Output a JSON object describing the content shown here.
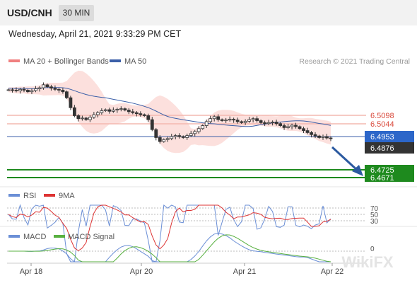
{
  "header": {
    "symbol": "USD/CNH",
    "timeframe": "30 MIN"
  },
  "datetime": "Wednesday, April 21, 2021 9:33:29 PM CET",
  "legend": {
    "ma20_bb": "MA 20 + Bollinger Bands",
    "ma50": "MA 50",
    "copyright": "Research © 2021 Trading Central",
    "rsi": "RSI",
    "rsi_ma": "9MA",
    "macd": "MACD",
    "macd_signal": "MACD Signal"
  },
  "colors": {
    "ma20_bb": "#f08080",
    "ma50": "#3b5fa8",
    "resistance": "#f4b8b0",
    "support": "#1e8a1e",
    "arrow": "#2c5aa0",
    "rsi": "#6b8fd6",
    "rsi_ma": "#d33",
    "macd": "#6b8fd6",
    "macd_signal": "#58b040"
  },
  "watermark": "WikiFX",
  "chart_data": {
    "type": "candlestick",
    "price_axis": {
      "ylim": [
        6.464,
        6.518
      ]
    },
    "xaxis_ticks": [
      "Apr 18",
      "Apr 20",
      "Apr 21",
      "Apr 22"
    ],
    "levels": [
      {
        "value": "6.5098",
        "kind": "resistance"
      },
      {
        "value": "6.5044",
        "kind": "resistance"
      },
      {
        "value": "6.4953",
        "kind": "ma50"
      },
      {
        "value": "6.4876",
        "kind": "last_price"
      },
      {
        "value": "6.4725",
        "kind": "support"
      },
      {
        "value": "6.4671",
        "kind": "support"
      }
    ],
    "closes": [
      6.512,
      6.5118,
      6.5115,
      6.5122,
      6.5118,
      6.511,
      6.5116,
      6.5125,
      6.513,
      6.5145,
      6.5135,
      6.5128,
      6.5122,
      6.5118,
      6.511,
      6.508,
      6.503,
      6.499,
      6.4975,
      6.4978,
      6.497,
      6.4982,
      6.4995,
      6.5005,
      6.5015,
      6.502,
      6.5012,
      6.5018,
      6.5022,
      6.5025,
      6.5018,
      6.501,
      6.5005,
      6.5,
      6.4995,
      6.499,
      6.497,
      6.492,
      6.488,
      6.486,
      6.487,
      6.4875,
      6.4885,
      6.489,
      6.4885,
      6.488,
      6.489,
      6.49,
      6.491,
      6.4925,
      6.494,
      6.496,
      6.4975,
      6.4985,
      6.497,
      6.4965,
      6.4968,
      6.4972,
      6.4968,
      6.496,
      6.4955,
      6.4962,
      6.497,
      6.4975,
      6.4965,
      6.4955,
      6.495,
      6.4955,
      6.4958,
      6.495,
      6.494,
      6.493,
      6.4935,
      6.4942,
      6.4935,
      6.4925,
      6.4915,
      6.4905,
      6.4895,
      6.4888,
      6.488,
      6.4885,
      6.4878,
      6.4876
    ],
    "rsi": {
      "levels": [
        "70",
        "50",
        "30"
      ]
    },
    "macd": {
      "levels": [
        "0"
      ]
    }
  }
}
